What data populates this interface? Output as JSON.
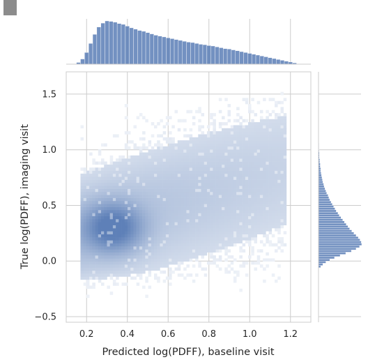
{
  "chart_data": {
    "type": "heatmap",
    "title": "",
    "xlabel": "Predicted log(PDFF), baseline visit",
    "ylabel": "True log(PDFF), imaging visit",
    "xlim": [
      0.1,
      1.3
    ],
    "ylim": [
      -0.55,
      1.7
    ],
    "xticks": [
      "0.2",
      "0.4",
      "0.6",
      "0.8",
      "1.0",
      "1.2"
    ],
    "yticks": [
      "−0.5",
      "0.0",
      "0.5",
      "1.0",
      "1.5"
    ],
    "grid": true,
    "colormap": "white-to-blue",
    "bar_color": "#4c72b0",
    "joint_density_peak": {
      "x": 0.33,
      "y": 0.3
    },
    "x_range_observed": [
      0.17,
      1.18
    ],
    "y_range_observed": [
      -0.52,
      1.52
    ],
    "marginal_x_histogram": {
      "bin_start": 0.15,
      "bin_width": 0.02,
      "relative_counts": [
        0.04,
        0.12,
        0.27,
        0.48,
        0.69,
        0.86,
        0.95,
        1.0,
        0.99,
        0.97,
        0.94,
        0.92,
        0.88,
        0.84,
        0.81,
        0.78,
        0.76,
        0.73,
        0.7,
        0.67,
        0.65,
        0.63,
        0.61,
        0.59,
        0.57,
        0.55,
        0.53,
        0.51,
        0.5,
        0.48,
        0.46,
        0.45,
        0.43,
        0.42,
        0.4,
        0.38,
        0.36,
        0.35,
        0.33,
        0.31,
        0.29,
        0.27,
        0.25,
        0.23,
        0.21,
        0.19,
        0.17,
        0.15,
        0.13,
        0.11,
        0.09,
        0.07,
        0.05,
        0.03
      ]
    },
    "marginal_y_histogram": {
      "bin_start": -0.06,
      "bin_width": 0.02,
      "relative_counts": [
        0.05,
        0.1,
        0.17,
        0.26,
        0.37,
        0.5,
        0.63,
        0.76,
        0.87,
        0.95,
        1.0,
        0.99,
        0.96,
        0.92,
        0.87,
        0.82,
        0.77,
        0.72,
        0.68,
        0.64,
        0.6,
        0.56,
        0.52,
        0.48,
        0.45,
        0.41,
        0.38,
        0.35,
        0.32,
        0.29,
        0.26,
        0.24,
        0.22,
        0.19,
        0.17,
        0.15,
        0.13,
        0.12,
        0.1,
        0.09,
        0.08,
        0.07,
        0.06,
        0.05,
        0.05,
        0.04,
        0.04,
        0.03,
        0.03,
        0.02,
        0.02,
        0.02,
        0.015,
        0.01,
        0.01,
        0.01,
        0.005,
        0.005,
        0.003,
        0.002
      ]
    }
  }
}
